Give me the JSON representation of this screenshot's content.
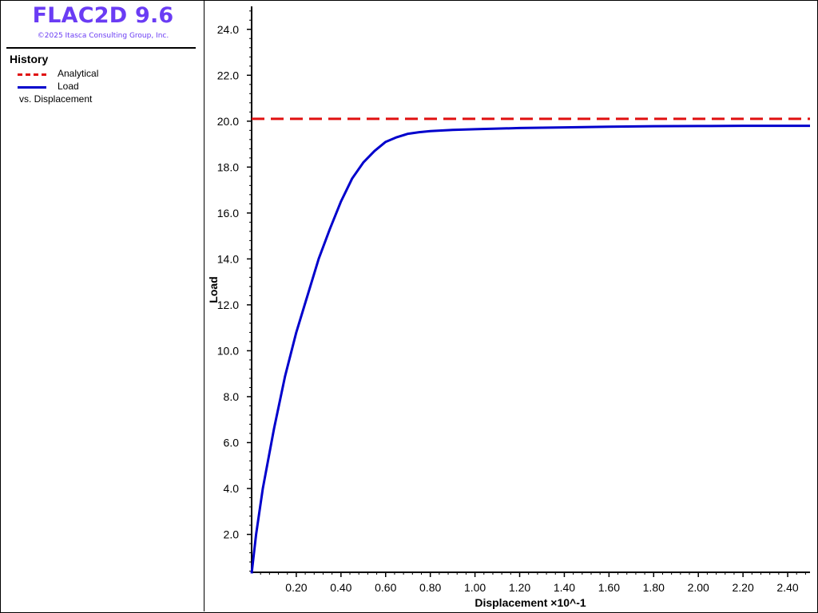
{
  "app": {
    "title": "FLAC2D 9.6",
    "copyright": "©2025 Itasca Consulting Group, Inc."
  },
  "legend": {
    "heading": "History",
    "items": [
      {
        "label": "Analytical",
        "color": "#e01010",
        "style": "dashed"
      },
      {
        "label": "Load",
        "color": "#0000cc",
        "style": "solid"
      }
    ],
    "vs_label": "vs. Displacement"
  },
  "chart_data": {
    "type": "line",
    "xlabel": "Displacement ×10^-1",
    "ylabel": "Load",
    "xlim": [
      0.0,
      2.5
    ],
    "ylim": [
      0.35,
      25.0
    ],
    "x_ticks": [
      "0.20",
      "0.40",
      "0.60",
      "0.80",
      "1.00",
      "1.20",
      "1.40",
      "1.60",
      "1.80",
      "2.00",
      "2.20",
      "2.40"
    ],
    "y_ticks": [
      "2.0",
      "4.0",
      "6.0",
      "8.0",
      "10.0",
      "12.0",
      "14.0",
      "16.0",
      "18.0",
      "20.0",
      "22.0",
      "24.0"
    ],
    "grid": false,
    "series": [
      {
        "name": "Analytical",
        "color": "#e01010",
        "style": "dashed",
        "x": [
          0.0,
          2.5
        ],
        "y": [
          20.1,
          20.1
        ]
      },
      {
        "name": "Load",
        "color": "#0000cc",
        "style": "solid",
        "x": [
          0.0,
          0.02,
          0.05,
          0.1,
          0.15,
          0.2,
          0.25,
          0.3,
          0.35,
          0.4,
          0.45,
          0.5,
          0.55,
          0.6,
          0.65,
          0.7,
          0.75,
          0.8,
          0.9,
          1.0,
          1.2,
          1.4,
          1.6,
          1.8,
          2.0,
          2.2,
          2.4,
          2.5
        ],
        "y": [
          0.3,
          2.0,
          4.0,
          6.6,
          8.9,
          10.8,
          12.4,
          14.0,
          15.3,
          16.5,
          17.5,
          18.2,
          18.7,
          19.1,
          19.3,
          19.45,
          19.52,
          19.57,
          19.62,
          19.65,
          19.7,
          19.73,
          19.76,
          19.78,
          19.79,
          19.8,
          19.8,
          19.8
        ]
      }
    ]
  }
}
